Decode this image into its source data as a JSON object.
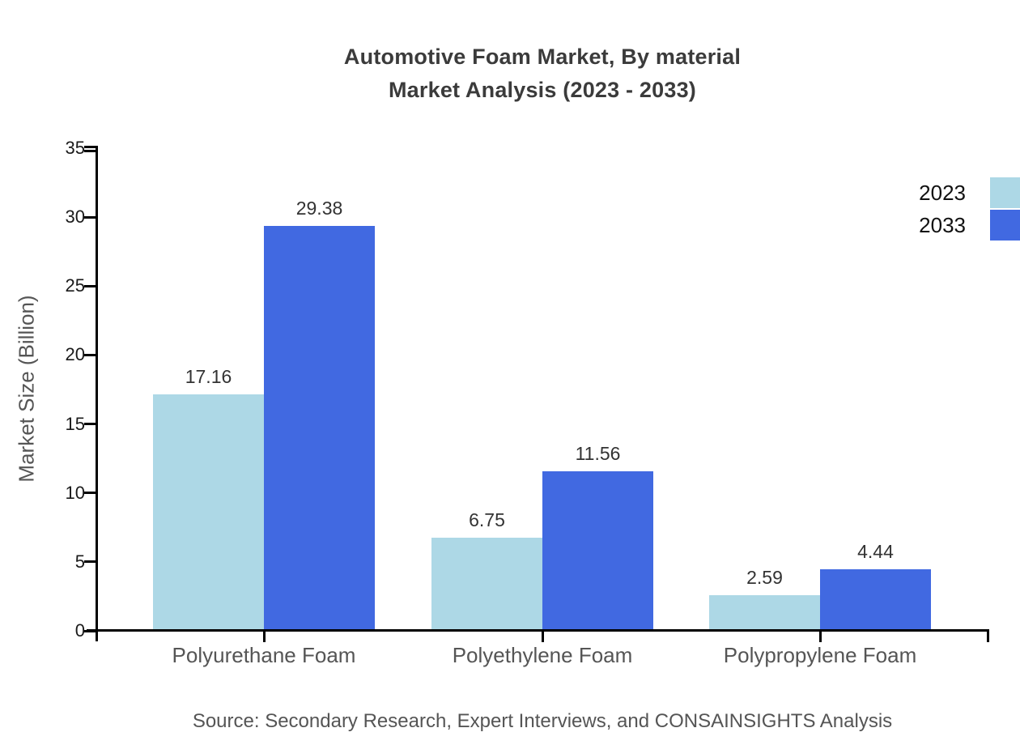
{
  "title": {
    "line1": "Automotive Foam Market, By material",
    "line2": "Market Analysis (2023 - 2033)"
  },
  "source": "Source: Secondary Research, Expert Interviews, and CONSAINSIGHTS Analysis",
  "chart_data": {
    "type": "bar",
    "title": "Automotive Foam Market, By material Market Analysis (2023 - 2033)",
    "categories": [
      "Polyurethane Foam",
      "Polyethylene Foam",
      "Polypropylene Foam"
    ],
    "series": [
      {
        "name": "2023",
        "color": "#ADD8E6",
        "values": [
          17.16,
          6.75,
          2.59
        ]
      },
      {
        "name": "2033",
        "color": "#4169E1",
        "values": [
          29.38,
          11.56,
          4.44
        ]
      }
    ],
    "xlabel": "",
    "ylabel": "Market Size (Billion)",
    "ylim": [
      0,
      35
    ],
    "yticks": [
      0,
      5,
      10,
      15,
      20,
      25,
      30,
      35
    ],
    "grid": false,
    "legend_position": "top-right",
    "value_labels": true,
    "value_label_format": "0.00"
  }
}
